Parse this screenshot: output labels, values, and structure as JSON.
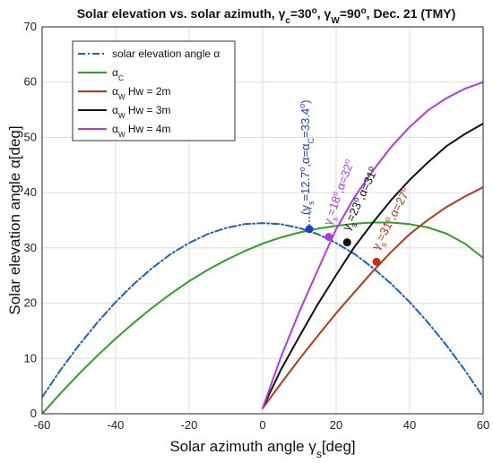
{
  "chart_data": {
    "type": "line",
    "title": "Solar elevation vs. solar azimuth, γ",
    "title_parts": [
      "Solar elevation vs. solar azimuth, γ",
      "c",
      "=30",
      "o",
      ", γ",
      "W",
      "=90",
      "o",
      ", Dec. 21 (TMY)"
    ],
    "xlabel": "Solar azimuth angle γ",
    "xlabel_sub": "s",
    "xlabel_unit": "[deg]",
    "ylabel": "Solar elevation angle α[deg]",
    "xlim": [
      -60,
      60
    ],
    "ylim": [
      0,
      70
    ],
    "xticks": [
      -60,
      -40,
      -20,
      0,
      20,
      40,
      60
    ],
    "yticks": [
      0,
      10,
      20,
      30,
      40,
      50,
      60,
      70
    ],
    "grid": true,
    "legend_position": "top-left",
    "series": [
      {
        "name": "solar elevation angle α",
        "color": "#1f5fbf",
        "style": "dashdot",
        "x": [
          -60,
          -55,
          -50,
          -45,
          -40,
          -35,
          -30,
          -25,
          -20,
          -15,
          -10,
          -5,
          0,
          5,
          10,
          15,
          20,
          25,
          30,
          35,
          40,
          45,
          50,
          55,
          60
        ],
        "y": [
          3.0,
          7.9,
          12.4,
          16.5,
          20.2,
          23.5,
          26.4,
          28.9,
          30.9,
          32.5,
          33.6,
          34.3,
          34.5,
          34.3,
          33.6,
          32.5,
          30.9,
          28.9,
          26.4,
          23.5,
          20.2,
          16.5,
          12.4,
          7.9,
          3.0
        ]
      },
      {
        "name": "α",
        "name_sub": "C",
        "color": "#2ea02a",
        "style": "solid",
        "x": [
          -60,
          -55,
          -50,
          -45,
          -40,
          -35,
          -30,
          -25,
          -20,
          -15,
          -10,
          -5,
          0,
          5,
          10,
          15,
          20,
          25,
          30,
          35,
          40,
          45,
          50,
          55,
          60
        ],
        "y": [
          0.0,
          3.7,
          7.2,
          10.5,
          13.6,
          16.5,
          19.2,
          21.7,
          24.0,
          26.0,
          27.8,
          29.4,
          30.8,
          31.9,
          32.8,
          33.5,
          34.0,
          34.4,
          34.6,
          34.6,
          34.3,
          33.7,
          32.6,
          30.8,
          28.2
        ]
      },
      {
        "name": "α",
        "name_sub": "W",
        "name_suffix": " Hw = 2m",
        "color": "#b5381f",
        "style": "solid",
        "x": [
          0,
          5,
          10,
          15,
          20,
          25,
          30,
          35,
          40,
          45,
          50,
          55,
          60
        ],
        "y": [
          1.0,
          5.5,
          9.9,
          14.1,
          18.2,
          22.0,
          25.8,
          29.3,
          32.5,
          35.1,
          37.4,
          39.3,
          41.0
        ]
      },
      {
        "name": "α",
        "name_sub": "W",
        "name_suffix": " Hw = 3m",
        "color": "#111111",
        "style": "solid",
        "x": [
          0,
          5,
          10,
          15,
          20,
          25,
          30,
          35,
          40,
          45,
          50,
          55,
          60
        ],
        "y": [
          1.0,
          8.0,
          14.0,
          19.8,
          25.1,
          30.2,
          34.6,
          38.7,
          42.3,
          45.5,
          48.4,
          50.6,
          52.5
        ]
      },
      {
        "name": "α",
        "name_sub": "W",
        "name_suffix": " Hw = 4m",
        "color": "#b23be0",
        "style": "solid",
        "x": [
          0,
          5,
          10,
          15,
          20,
          25,
          30,
          35,
          40,
          45,
          50,
          55,
          60
        ],
        "y": [
          1.0,
          10.3,
          18.5,
          26.0,
          33.4,
          39.2,
          44.0,
          48.3,
          51.9,
          54.9,
          57.1,
          58.8,
          60.0
        ]
      }
    ],
    "markers": [
      {
        "x": 12.7,
        "y": 33.4,
        "color": "#1f3fbf"
      },
      {
        "x": 18,
        "y": 32,
        "color": "#b23be0"
      },
      {
        "x": 23,
        "y": 31,
        "color": "#111111"
      },
      {
        "x": 31,
        "y": 27.5,
        "color": "#c0301f"
      }
    ],
    "annotations": [
      {
        "parts": [
          "(γ",
          "s",
          "=12.7",
          "o",
          ",α=α",
          "C",
          "=33.4",
          "o",
          ")"
        ],
        "color": "#1f3fbf",
        "x": 12.7,
        "y": 36
      },
      {
        "parts": [
          "γ",
          "s",
          "=18",
          "o",
          ",α=32",
          "o"
        ],
        "color": "#b23be0",
        "x": 18.5,
        "y": 34
      },
      {
        "parts": [
          "γ",
          "s",
          "=23",
          "o",
          ",α=31",
          "o"
        ],
        "color": "#111111",
        "x": 23.5,
        "y": 33
      },
      {
        "parts": [
          "γ",
          "s",
          "=31",
          "o",
          ",α=27",
          "o"
        ],
        "color": "#c0301f",
        "x": 31.5,
        "y": 29.5
      }
    ]
  }
}
